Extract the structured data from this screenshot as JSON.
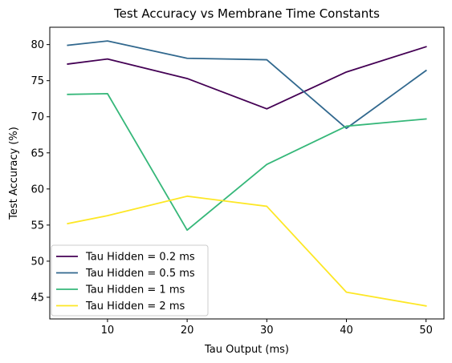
{
  "chart_data": {
    "type": "line",
    "title": "Test Accuracy vs Membrane Time Constants",
    "xlabel": "Tau Output (ms)",
    "ylabel": "Test Accuracy (%)",
    "x": [
      5,
      10,
      20,
      30,
      40,
      50
    ],
    "xticks": [
      10,
      20,
      30,
      40,
      50
    ],
    "yticks": [
      45,
      50,
      55,
      60,
      65,
      70,
      75,
      80
    ],
    "xlim": [
      2.75,
      52.25
    ],
    "ylim": [
      42.0,
      82.4
    ],
    "grid": false,
    "legend_position": "lower-left",
    "series": [
      {
        "name": "Tau Hidden = 0.2 ms",
        "color": "#440154",
        "values": [
          77.3,
          78.0,
          75.3,
          71.1,
          76.2,
          79.7
        ]
      },
      {
        "name": "Tau Hidden = 0.5 ms",
        "color": "#31688e",
        "values": [
          79.9,
          80.5,
          78.1,
          77.9,
          68.4,
          76.4
        ]
      },
      {
        "name": "Tau Hidden = 1 ms",
        "color": "#35b779",
        "values": [
          73.1,
          73.2,
          54.3,
          63.4,
          68.7,
          69.7
        ]
      },
      {
        "name": "Tau Hidden = 2 ms",
        "color": "#fde725",
        "values": [
          55.2,
          56.3,
          59.0,
          57.6,
          45.7,
          43.8
        ]
      }
    ]
  }
}
